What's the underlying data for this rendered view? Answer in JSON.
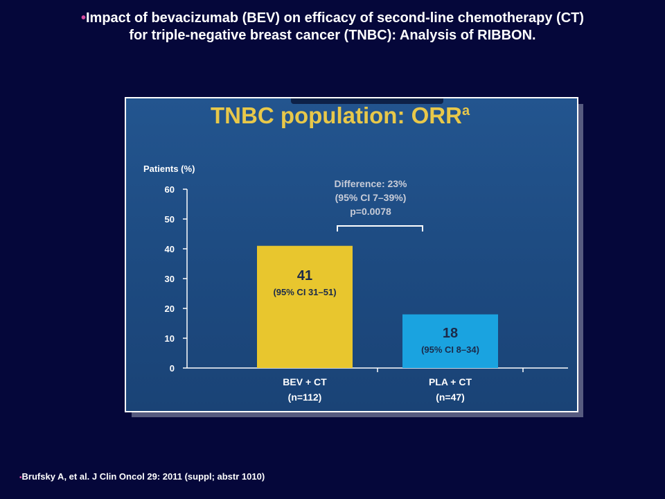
{
  "slide": {
    "bullet": "•",
    "title_line1": "Impact of bevacizumab (BEV) on efficacy of second-line chemotherapy (CT)",
    "title_line2": "for triple-negative breast cancer (TNBC): Analysis of RIBBON.",
    "footer": "Brufsky A, et al. J Clin Oncol 29: 2011 (suppl; abstr 1010)"
  },
  "colors": {
    "background": "#05073a",
    "chart_bg": "#1d4a80",
    "title_yellow": "#e8c84a",
    "bev_bar": "#e8c62e",
    "pla_bar": "#1aa3e0",
    "text_dark": "#1b2a4a",
    "axis_text": "#ffffff",
    "bracket": "#ffffff",
    "diff_text": "#c8ccd8"
  },
  "chart_data": {
    "type": "bar",
    "title": "TNBC population: ORR",
    "title_superscript": "a",
    "ylabel": "Patients (%)",
    "ylim": [
      0,
      60
    ],
    "yticks": [
      0,
      10,
      20,
      30,
      40,
      50,
      60
    ],
    "categories": [
      "BEV + CT",
      "PLA + CT"
    ],
    "category_sublabels": [
      "(n=112)",
      "(n=47)"
    ],
    "values": [
      41,
      18
    ],
    "value_labels": [
      "41",
      "18"
    ],
    "ci_labels": [
      "(95% CI 31–51)",
      "(95% CI 8–34)"
    ],
    "difference": {
      "line1": "Difference: 23%",
      "line2": "(95% CI 7–39%)",
      "line3": "p=0.0078"
    }
  }
}
